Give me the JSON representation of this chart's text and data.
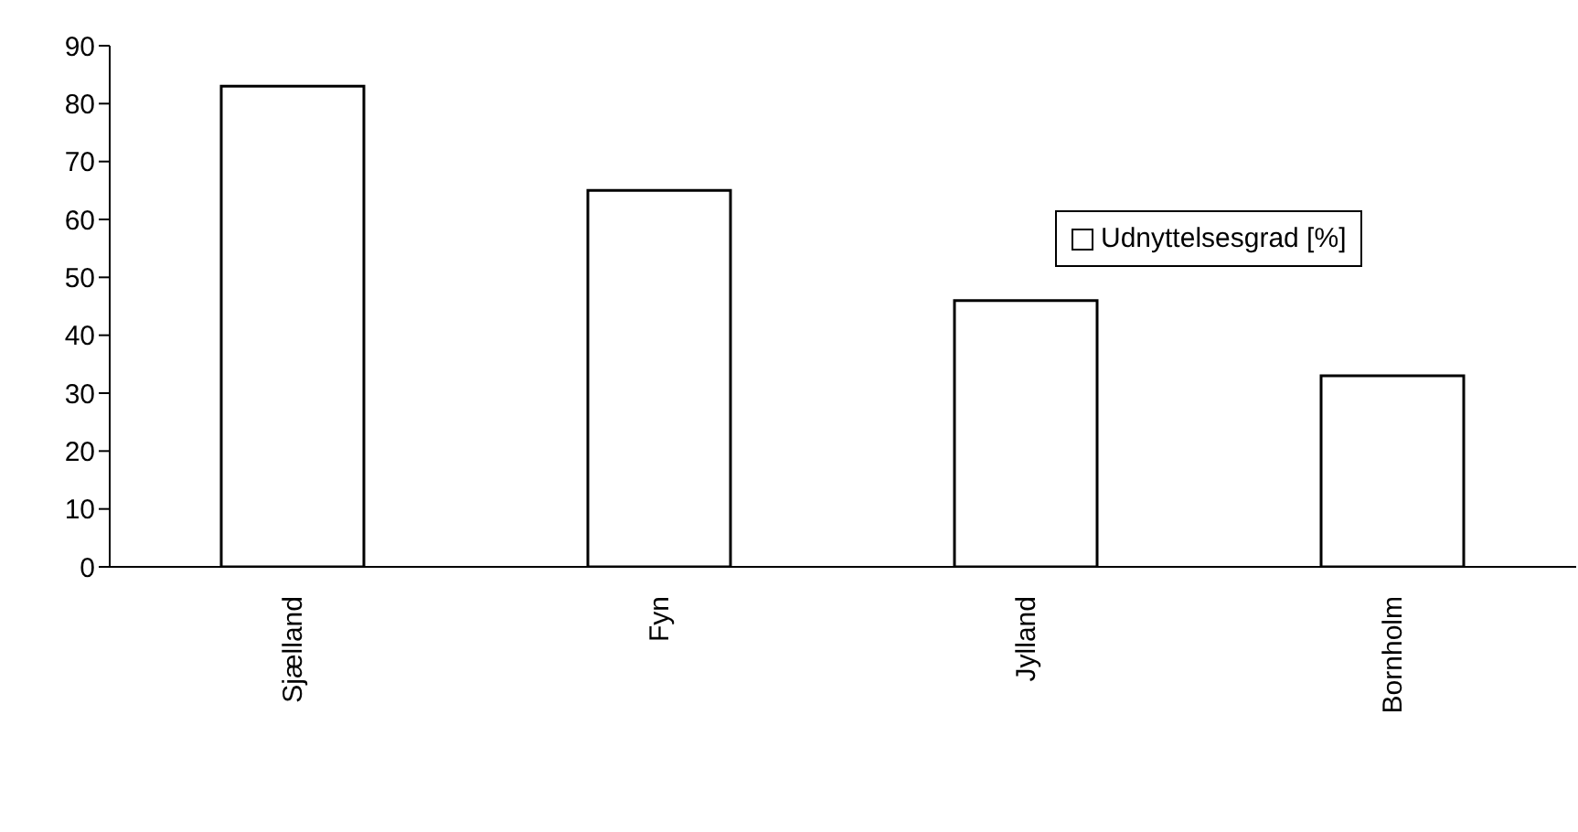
{
  "chart_data": {
    "type": "bar",
    "categories": [
      "Sjælland",
      "Fyn",
      "Jylland",
      "Bornholm"
    ],
    "series": [
      {
        "name": "Udnyttelsesgrad [%]",
        "color": "#ffffff",
        "values": [
          83,
          65,
          46,
          33
        ]
      }
    ],
    "ylim": [
      0,
      90
    ],
    "yticks": [
      0,
      10,
      20,
      30,
      40,
      50,
      60,
      70,
      80,
      90
    ],
    "grid": false,
    "legend": "top right"
  }
}
